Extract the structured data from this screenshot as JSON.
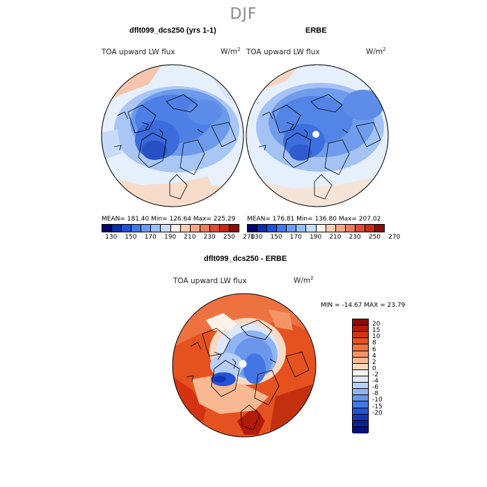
{
  "season": "DJF",
  "panels": [
    {
      "title": "dflt099_dcs250 (yrs 1-1)",
      "field": "TOA upward LW flux",
      "units": "W/m",
      "stats": "MEAN= 181.40   Min= 126.64   Max= 225.29"
    },
    {
      "title": "ERBE",
      "field": "TOA upward LW flux",
      "units": "W/m",
      "stats": "MEAN= 176.81   Min= 136.80   Max= 207.02"
    }
  ],
  "abs_colorbar": {
    "ticks": [
      "130",
      "150",
      "170",
      "190",
      "210",
      "230",
      "250",
      "270"
    ],
    "colors": [
      "#08086b",
      "#0a2fa8",
      "#1f52d6",
      "#3f78ea",
      "#6a9bf2",
      "#97bdf6",
      "#c6dcfa",
      "#fdf0e8",
      "#f8cdb4",
      "#f3a688",
      "#ea7a5e",
      "#dd4a36",
      "#c8281a",
      "#8a0e0c"
    ]
  },
  "diff_panel": {
    "title": "dflt099_dcs250 - ERBE",
    "field": "TOA upward LW flux",
    "units": "W/m",
    "stats": "MIN = -14.67  MAX =  23.79",
    "colorbar_ticks": [
      "20",
      "15",
      "10",
      "8",
      "6",
      "4",
      "2",
      "0",
      "-2",
      "-4",
      "-6",
      "-8",
      "-10",
      "-15",
      "-20"
    ],
    "colorbar_colors": [
      "#8c0a07",
      "#b41a0a",
      "#d43312",
      "#e5521f",
      "#ee7240",
      "#f49567",
      "#f8b894",
      "#fad9c2",
      "#fbf2ea",
      "#dde8fb",
      "#b7cff7",
      "#91b4f2",
      "#6b96ec",
      "#4475e4",
      "#2553d6",
      "#1535b8",
      "#0b1f95",
      "#07107a"
    ]
  },
  "icons": {
    "pole": "white-pole-dot-icon"
  }
}
